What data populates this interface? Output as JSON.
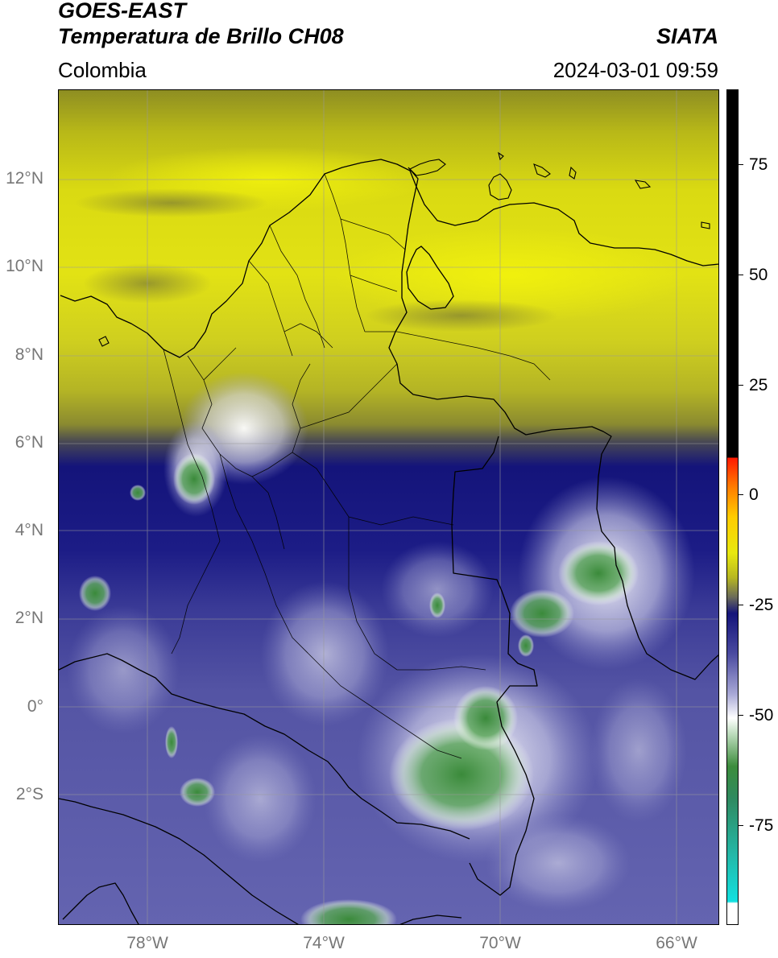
{
  "header": {
    "satellite": "GOES-EAST",
    "product": "Temperatura de Brillo CH08",
    "brand": "SIATA",
    "region": "Colombia",
    "timestamp": "2024-03-01 09:59"
  },
  "map": {
    "lat_labels": [
      "12°N",
      "10°N",
      "8°N",
      "6°N",
      "4°N",
      "2°N",
      "0°",
      "2°S"
    ],
    "lon_labels": [
      "78°W",
      "74°W",
      "70°W",
      "66°W"
    ]
  },
  "colorbar": {
    "tick_labels": [
      "75",
      "50",
      "25",
      "0",
      "-25",
      "-50",
      "-75"
    ]
  },
  "colors": {
    "warm_yellow": "#e6e61a",
    "olive": "#9a9a2a",
    "deep_blue": "#14147a",
    "periwinkle": "#5a5aa8",
    "white": "#ffffff",
    "green": "#3c8c3c",
    "cyan": "#12e0e0",
    "red": "#ff1a00",
    "black": "#000000"
  }
}
